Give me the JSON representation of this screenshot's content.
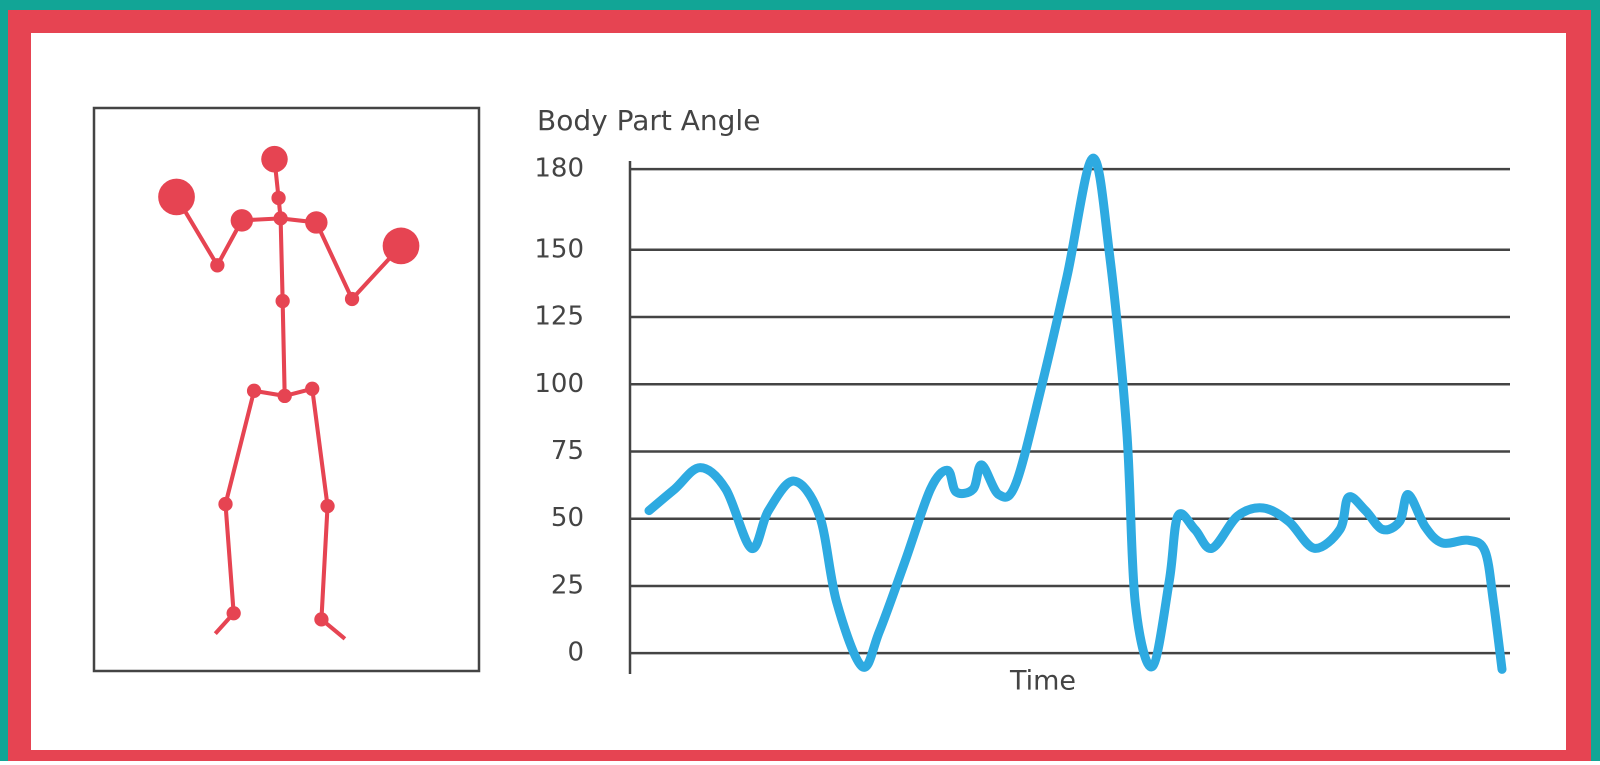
{
  "chart_data": {
    "type": "line",
    "y_axis_label": "Body Part Angle",
    "x_axis_label": "Time",
    "x": [
      0,
      3,
      6,
      9,
      12,
      14,
      17,
      20,
      22,
      25,
      27,
      30,
      33,
      35,
      36,
      38,
      39,
      41,
      43,
      46,
      49,
      52,
      54,
      56,
      57,
      59,
      61,
      62,
      64,
      66,
      69,
      72,
      75,
      78,
      81,
      82,
      84,
      86,
      88,
      89,
      91,
      93,
      96,
      98,
      99,
      100
    ],
    "series": [
      {
        "color": "#2eaae1",
        "values": [
          53,
          61,
          69,
          61,
          39,
          53,
          64,
          51,
          19,
          -5,
          8,
          34,
          61,
          68,
          60,
          61,
          70,
          59,
          63,
          99,
          140,
          184,
          148,
          83,
          19,
          -5,
          27,
          51,
          46,
          39,
          51,
          54,
          49,
          39,
          46,
          58,
          53,
          46,
          49,
          59,
          47,
          41,
          42,
          38,
          19,
          -6
        ]
      }
    ],
    "xlim": [
      0,
      100
    ],
    "ylim": [
      -7,
      186
    ],
    "yticks": [
      0,
      25,
      50,
      75,
      100,
      125,
      150,
      180
    ],
    "grid": true
  }
}
